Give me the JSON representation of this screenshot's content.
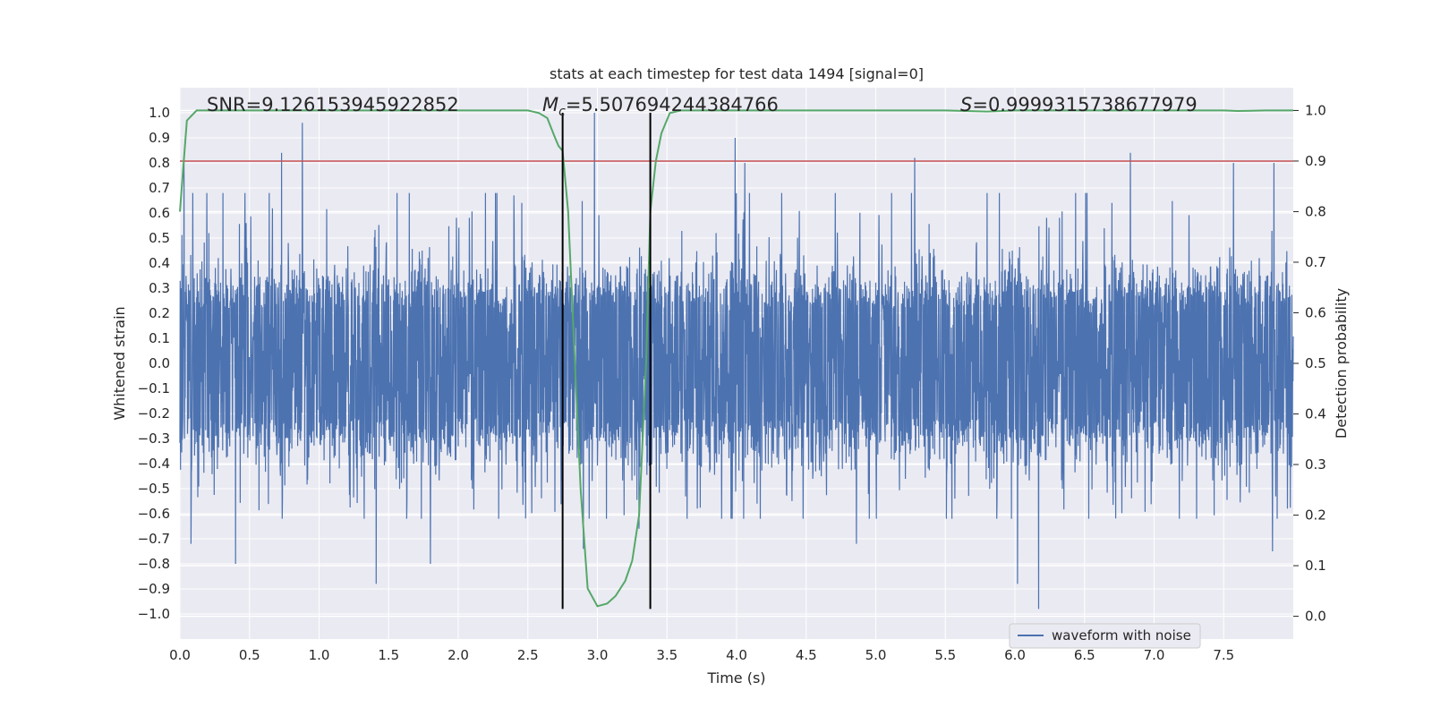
{
  "chart_data": {
    "type": "line",
    "title": "stats at each timestep for test data 1494 [signal=0]",
    "xlabel": "Time (s)",
    "ylabel": "Whitened strain",
    "y2label": "Detection probability",
    "xlim": [
      0.0,
      8.0
    ],
    "ylim": [
      -1.1,
      1.1
    ],
    "y2lim": [
      -0.045,
      1.045
    ],
    "x_ticks": [
      "0.0",
      "0.5",
      "1.0",
      "1.5",
      "2.0",
      "2.5",
      "3.0",
      "3.5",
      "4.0",
      "4.5",
      "5.0",
      "5.5",
      "6.0",
      "6.5",
      "7.0",
      "7.5"
    ],
    "y_ticks": [
      "1.0",
      "0.9",
      "0.8",
      "0.7",
      "0.6",
      "0.5",
      "0.4",
      "0.3",
      "0.2",
      "0.1",
      "0.0",
      "−0.1",
      "−0.2",
      "−0.3",
      "−0.4",
      "−0.5",
      "−0.6",
      "−0.7",
      "−0.8",
      "−0.9",
      "−1.0"
    ],
    "y2_ticks": [
      "1.0",
      "0.9",
      "0.8",
      "0.7",
      "0.6",
      "0.5",
      "0.4",
      "0.3",
      "0.2",
      "0.1",
      "0.0"
    ],
    "annotations": {
      "snr": "SNR=9.126153945922852",
      "mc_symbol": "M",
      "mc_sub": "c",
      "mc_value": "=5.507694244384766",
      "s_symbol": "S",
      "s_value": "=0.9999315738677979"
    },
    "legend": {
      "placement": "lower-right",
      "entries": [
        "waveform with noise"
      ]
    },
    "grid": true,
    "colors": {
      "strain": "#4c72b0",
      "probability": "#55a868",
      "threshold": "#c44e52",
      "marker": "#000000",
      "plot_bg": "#eaeaf2",
      "grid": "#ffffff"
    },
    "threshold": {
      "y2": 0.9
    },
    "vertical_markers": {
      "x": [
        2.75,
        3.38
      ],
      "y_range": [
        -0.98,
        1.0
      ]
    },
    "strain_noise": {
      "x_start": 0.0,
      "x_end": 8.0,
      "typical_abs": 0.4,
      "min": -0.98,
      "max": 1.0
    },
    "strain_spikes": [
      {
        "x": 0.03,
        "y": 0.81
      },
      {
        "x": 0.08,
        "y": -0.72
      },
      {
        "x": 0.4,
        "y": -0.8
      },
      {
        "x": 0.73,
        "y": 0.84
      },
      {
        "x": 0.88,
        "y": 0.96
      },
      {
        "x": 1.41,
        "y": -0.88
      },
      {
        "x": 1.8,
        "y": -0.8
      },
      {
        "x": 2.4,
        "y": 0.67
      },
      {
        "x": 2.98,
        "y": 1.0
      },
      {
        "x": 2.9,
        "y": -0.74
      },
      {
        "x": 3.3,
        "y": -0.66
      },
      {
        "x": 3.99,
        "y": 0.9
      },
      {
        "x": 4.06,
        "y": 0.8
      },
      {
        "x": 4.86,
        "y": -0.72
      },
      {
        "x": 5.28,
        "y": 0.82
      },
      {
        "x": 6.02,
        "y": -0.88
      },
      {
        "x": 6.17,
        "y": -0.98
      },
      {
        "x": 6.83,
        "y": 0.84
      },
      {
        "x": 7.57,
        "y": 0.8
      },
      {
        "x": 7.86,
        "y": 0.8
      },
      {
        "x": 7.85,
        "y": -0.75
      }
    ],
    "series": [
      {
        "name": "waveform with noise",
        "axis": "left",
        "description_of_shape": "dense whitened noise between about -0.5 and 0.5 with sparse spikes"
      },
      {
        "axis": "right",
        "x": [
          0.0,
          0.05,
          0.12,
          0.2,
          0.5,
          1.0,
          1.5,
          2.0,
          2.4,
          2.5,
          2.58,
          2.64,
          2.69,
          2.72,
          2.75,
          2.79,
          2.83,
          2.88,
          2.93,
          3.0,
          3.07,
          3.13,
          3.2,
          3.25,
          3.3,
          3.35,
          3.38,
          3.42,
          3.46,
          3.52,
          3.6,
          4.0,
          5.0,
          5.5,
          5.8,
          6.0,
          6.5,
          7.0,
          7.5,
          7.6,
          7.8,
          8.0
        ],
        "y": [
          0.8,
          0.98,
          1.0,
          1.0,
          1.0,
          1.0,
          1.0,
          1.0,
          1.0,
          1.0,
          0.995,
          0.985,
          0.95,
          0.93,
          0.92,
          0.8,
          0.55,
          0.25,
          0.055,
          0.02,
          0.025,
          0.04,
          0.07,
          0.11,
          0.2,
          0.5,
          0.8,
          0.9,
          0.955,
          0.995,
          1.0,
          1.0,
          1.0,
          1.0,
          0.998,
          1.0,
          1.0,
          1.0,
          1.0,
          0.999,
          1.0,
          1.0
        ]
      }
    ]
  }
}
